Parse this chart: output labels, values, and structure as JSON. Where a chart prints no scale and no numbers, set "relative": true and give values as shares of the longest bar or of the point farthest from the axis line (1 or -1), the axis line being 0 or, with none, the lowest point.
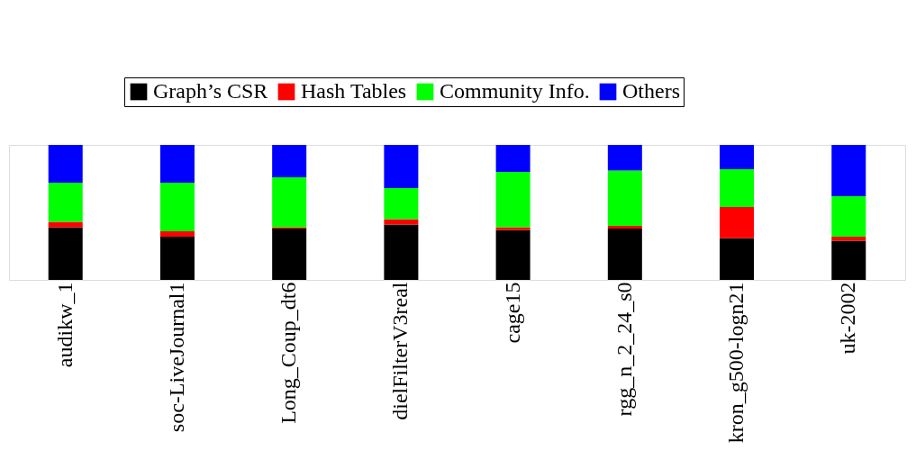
{
  "chart_data": {
    "type": "bar",
    "stacked": true,
    "relative": true,
    "legend": "top",
    "grid": false,
    "categories": [
      "audikw_1",
      "soc-LiveJournal1",
      "Long_Coup_dt6",
      "dielFilterV3real",
      "cage15",
      "rgg_n_2_24_s0",
      "kron_g500-logn21",
      "uk-2002"
    ],
    "series": [
      {
        "name": "Graph’s CSR",
        "color": "#000000",
        "values": [
          0.39,
          0.32,
          0.38,
          0.41,
          0.37,
          0.38,
          0.31,
          0.29
        ]
      },
      {
        "name": "Hash Tables",
        "color": "#ff0000",
        "values": [
          0.04,
          0.04,
          0.01,
          0.04,
          0.02,
          0.02,
          0.23,
          0.03
        ]
      },
      {
        "name": "Community Info.",
        "color": "#00ff00",
        "values": [
          0.29,
          0.36,
          0.37,
          0.23,
          0.41,
          0.41,
          0.28,
          0.3
        ]
      },
      {
        "name": "Others",
        "color": "#0000ff",
        "values": [
          0.28,
          0.28,
          0.24,
          0.32,
          0.2,
          0.19,
          0.18,
          0.38
        ]
      }
    ]
  }
}
